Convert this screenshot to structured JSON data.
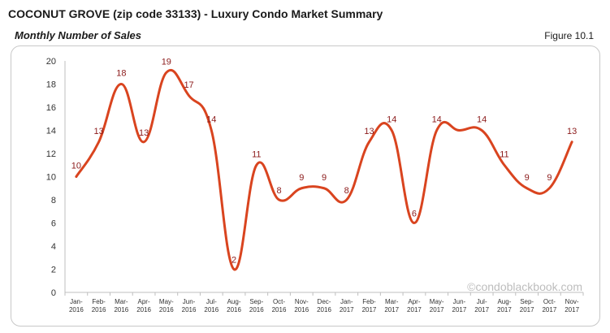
{
  "header": {
    "title": "COCONUT GROVE (zip code 33133) - Luxury Condo Market Summary",
    "subtitle": "Monthly Number of Sales",
    "figure": "Figure 10.1"
  },
  "watermark": "©condoblackbook.com",
  "colors": {
    "line": "#d9441f",
    "data_label": "#8b1a1a",
    "axis": "#bfbfbf"
  },
  "chart_data": {
    "type": "line",
    "title": "",
    "xlabel": "",
    "ylabel": "",
    "ylim": [
      0,
      20
    ],
    "yticks": [
      0,
      2,
      4,
      6,
      8,
      10,
      12,
      14,
      16,
      18,
      20
    ],
    "grid": false,
    "legend": "none",
    "categories": [
      [
        "Jan-",
        "2016"
      ],
      [
        "Feb-",
        "2016"
      ],
      [
        "Mar-",
        "2016"
      ],
      [
        "Apr-",
        "2016"
      ],
      [
        "May-",
        "2016"
      ],
      [
        "Jun-",
        "2016"
      ],
      [
        "Jul-",
        "2016"
      ],
      [
        "Aug-",
        "2016"
      ],
      [
        "Sep-",
        "2016"
      ],
      [
        "Oct-",
        "2016"
      ],
      [
        "Nov-",
        "2016"
      ],
      [
        "Dec-",
        "2016"
      ],
      [
        "Jan-",
        "2017"
      ],
      [
        "Feb-",
        "2017"
      ],
      [
        "Mar-",
        "2017"
      ],
      [
        "Apr-",
        "2017"
      ],
      [
        "May-",
        "2017"
      ],
      [
        "Jun-",
        "2017"
      ],
      [
        "Jul-",
        "2017"
      ],
      [
        "Aug-",
        "2017"
      ],
      [
        "Sep-",
        "2017"
      ],
      [
        "Oct-",
        "2017"
      ],
      [
        "Nov-",
        "2017"
      ]
    ],
    "series": [
      {
        "values": [
          10,
          13,
          18,
          13,
          19,
          17,
          14,
          2,
          11,
          8,
          9,
          9,
          8,
          13,
          14,
          6,
          14,
          14,
          14,
          11,
          9,
          9,
          13
        ],
        "labels": [
          "10",
          "13",
          "18",
          "13",
          "19",
          "17",
          "14",
          "2",
          "11",
          "8",
          "9",
          "9",
          "8",
          "13",
          "14",
          "6",
          "14",
          "",
          "14",
          "11",
          "9",
          "9",
          "13"
        ]
      }
    ]
  }
}
